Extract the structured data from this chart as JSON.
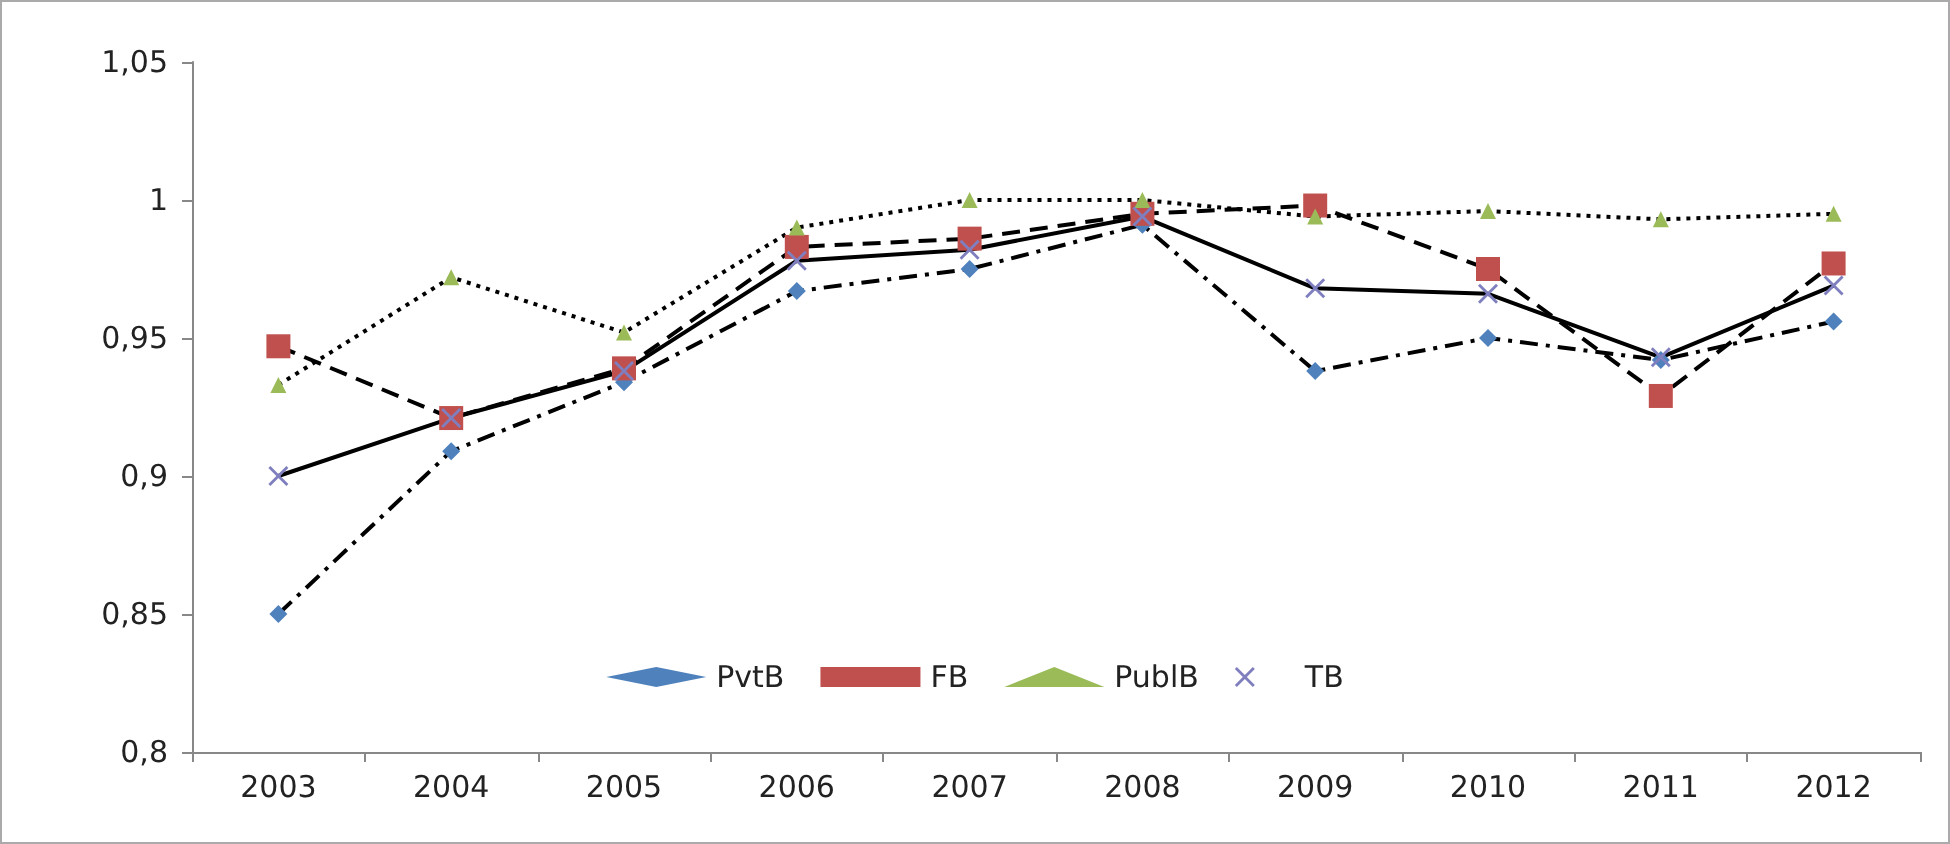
{
  "chart_data": {
    "type": "line",
    "categories": [
      "2003",
      "2004",
      "2005",
      "2006",
      "2007",
      "2008",
      "2009",
      "2010",
      "2011",
      "2012"
    ],
    "series": [
      {
        "name": "PvtB",
        "color": "#4f81bd",
        "marker": "diamond",
        "line_style": "dashdot",
        "values": [
          0.85,
          0.909,
          0.934,
          0.967,
          0.975,
          0.991,
          0.938,
          0.95,
          0.942,
          0.956
        ]
      },
      {
        "name": "FB",
        "color": "#c0504d",
        "marker": "square",
        "line_style": "dashed",
        "values": [
          0.947,
          0.921,
          0.939,
          0.983,
          0.986,
          0.995,
          0.998,
          0.975,
          0.929,
          0.977
        ]
      },
      {
        "name": "PublB",
        "color": "#9bbb59",
        "marker": "triangle",
        "line_style": "dotted",
        "values": [
          0.933,
          0.972,
          0.952,
          0.99,
          1.0,
          1.0,
          0.994,
          0.996,
          0.993,
          0.995
        ]
      },
      {
        "name": "TB",
        "color": "#7f7fbf",
        "marker": "cross",
        "line_style": "solid",
        "values": [
          0.9,
          0.921,
          0.938,
          0.978,
          0.982,
          0.994,
          0.968,
          0.966,
          0.943,
          0.969
        ]
      }
    ],
    "ylim": [
      0.8,
      1.05
    ],
    "yticks": [
      {
        "value": 0.8,
        "label": "0,8"
      },
      {
        "value": 0.85,
        "label": "0,85"
      },
      {
        "value": 0.9,
        "label": "0,9"
      },
      {
        "value": 0.95,
        "label": "0,95"
      },
      {
        "value": 1,
        "label": "1"
      },
      {
        "value": 1.05,
        "label": "1,05"
      }
    ],
    "grid": false,
    "legend": "bottom"
  }
}
